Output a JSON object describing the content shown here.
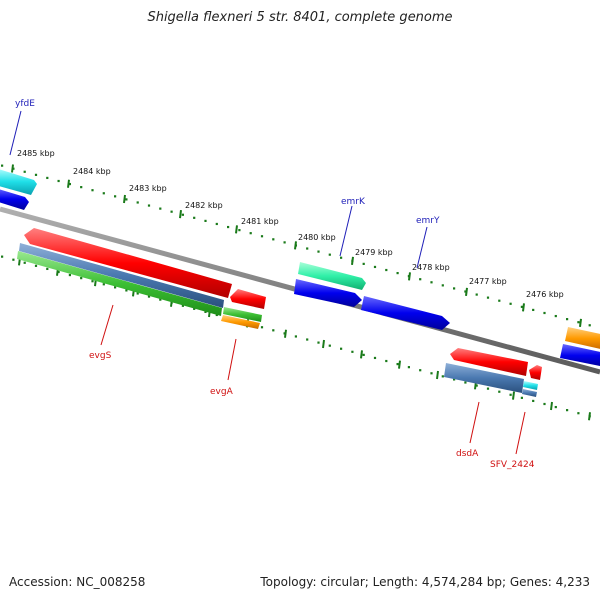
{
  "title": "Shigella flexneri 5 str. 8401, complete genome",
  "footer": {
    "accession": "Accession: NC_008258",
    "summary": "Topology: circular; Length: 4,574,284 bp; Genes: 4,233"
  },
  "colors": {
    "backbone": "#808080",
    "tick_green": "#1a7a1a",
    "label_blue": "#1f1fb8",
    "label_red": "#d01010"
  },
  "scale_labels": [
    "2485 kbp",
    "2484 kbp",
    "2483 kbp",
    "2482 kbp",
    "2481 kbp",
    "2480 kbp",
    "2479 kbp",
    "2478 kbp",
    "2477 kbp",
    "2476 kbp"
  ],
  "gene_labels": {
    "top": [
      "yfdE",
      "emrK",
      "emrY"
    ],
    "bottom": [
      "evgS",
      "evgA",
      "dsdA",
      "SFV_2424"
    ]
  }
}
